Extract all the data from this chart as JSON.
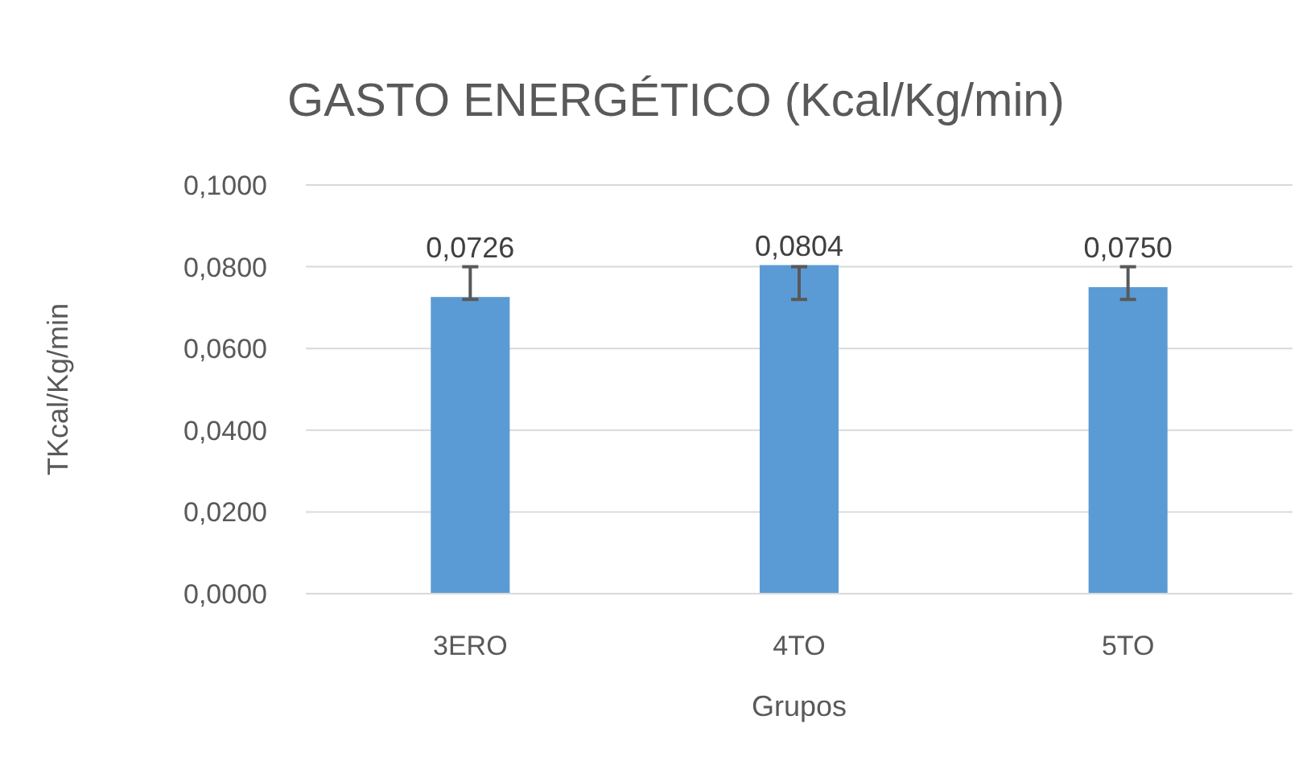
{
  "chart_data": {
    "type": "bar",
    "title": "GASTO ENERGÉTICO (Kcal/Kg/min)",
    "xlabel": "Grupos",
    "ylabel": "TKcal/Kg/min",
    "categories": [
      "3ERO",
      "4TO",
      "5TO"
    ],
    "values": [
      0.0726,
      0.0804,
      0.075
    ],
    "value_labels": [
      "0,0726",
      "0,0804",
      "0,0750"
    ],
    "errors": [
      [
        0.072,
        0.08
      ],
      [
        0.072,
        0.08
      ],
      [
        0.072,
        0.08
      ]
    ],
    "color": "#5b9bd5",
    "ylim": [
      0,
      0.1
    ],
    "yticks": [
      {
        "value": 0,
        "label": "0,0000"
      },
      {
        "value": 0.02,
        "label": "0,0200"
      },
      {
        "value": 0.04,
        "label": "0,0400"
      },
      {
        "value": 0.06,
        "label": "0,0600"
      },
      {
        "value": 0.08,
        "label": "0,0800"
      },
      {
        "value": 0.1,
        "label": "0,1000"
      }
    ],
    "grid": "y"
  }
}
